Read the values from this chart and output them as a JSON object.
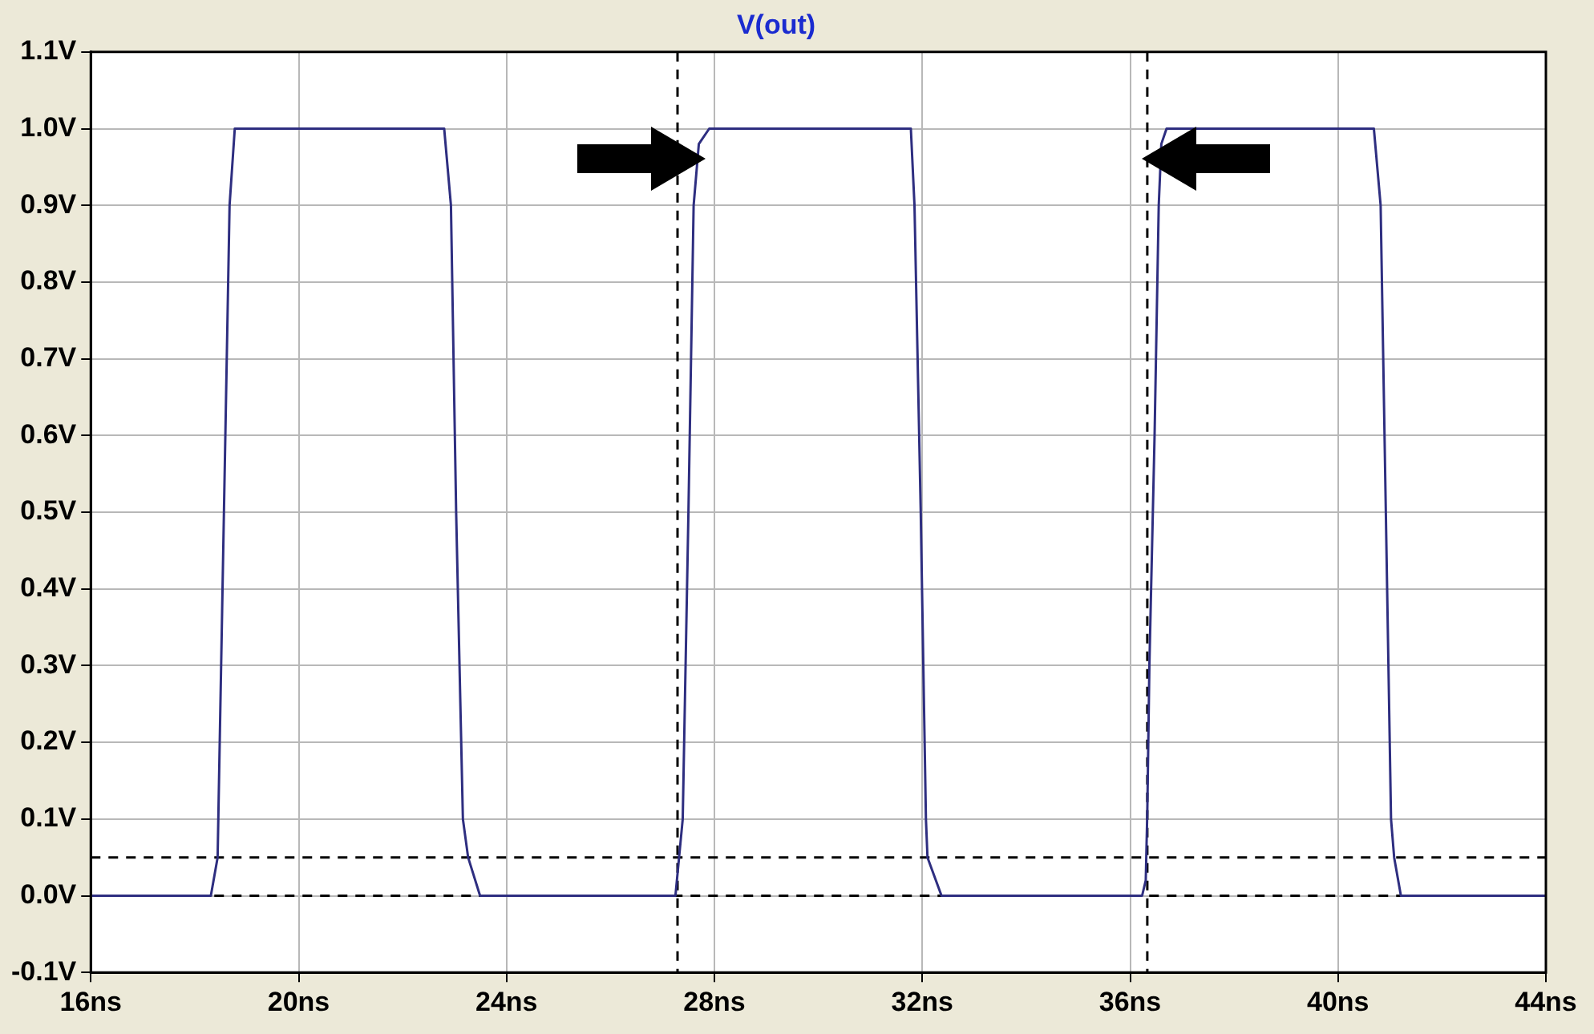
{
  "chart_data": {
    "type": "line",
    "title": "V(out)",
    "series": [
      {
        "color": "#2e2e80",
        "x": [
          16,
          18.31,
          18.44,
          18.67,
          18.77,
          18.94,
          22.8,
          22.93,
          23.03,
          23.16,
          23.26,
          23.49,
          27.25,
          27.32,
          27.39,
          27.5,
          27.6,
          27.7,
          27.9,
          31.78,
          31.85,
          31.97,
          32.07,
          32.1,
          32.37,
          36.23,
          36.3,
          36.33,
          36.37,
          36.47,
          36.55,
          36.6,
          36.7,
          40.69,
          40.82,
          40.92,
          41.02,
          41.08,
          41.21,
          44
        ],
        "values": [
          0,
          0,
          0.05,
          0.9,
          1,
          1,
          1,
          0.9,
          0.5,
          0.1,
          0.05,
          0,
          0,
          0.05,
          0.1,
          0.5,
          0.9,
          0.98,
          1,
          1,
          0.9,
          0.5,
          0.1,
          0.05,
          0,
          0,
          0.02,
          0.11,
          0.3,
          0.6,
          0.9,
          0.98,
          1,
          1,
          0.9,
          0.5,
          0.1,
          0.05,
          0,
          0
        ]
      }
    ],
    "xlim": [
      16,
      44
    ],
    "xticks": [
      {
        "value": 16,
        "label": "16ns"
      },
      {
        "value": 20,
        "label": "20ns"
      },
      {
        "value": 24,
        "label": "24ns"
      },
      {
        "value": 28,
        "label": "28ns"
      },
      {
        "value": 32,
        "label": "32ns"
      },
      {
        "value": 36,
        "label": "36ns"
      },
      {
        "value": 40,
        "label": "40ns"
      },
      {
        "value": 44,
        "label": "44ns"
      }
    ],
    "ylim": [
      -0.1,
      1.1
    ],
    "yticks": [
      {
        "value": -0.1,
        "label": "-0.1V"
      },
      {
        "value": 0,
        "label": "0.0V"
      },
      {
        "value": 0.1,
        "label": "0.1V"
      },
      {
        "value": 0.2,
        "label": "0.2V"
      },
      {
        "value": 0.3,
        "label": "0.3V"
      },
      {
        "value": 0.4,
        "label": "0.4V"
      },
      {
        "value": 0.5,
        "label": "0.5V"
      },
      {
        "value": 0.6,
        "label": "0.6V"
      },
      {
        "value": 0.7,
        "label": "0.7V"
      },
      {
        "value": 0.8,
        "label": "0.8V"
      },
      {
        "value": 0.9,
        "label": "0.9V"
      },
      {
        "value": 1.0,
        "label": "1.0V"
      },
      {
        "value": 1.1,
        "label": "1.1V"
      }
    ],
    "ref_lines": [
      {
        "axis": "y",
        "value": 0.05,
        "color": "#000000",
        "line_style": "dashed"
      },
      {
        "axis": "y",
        "value": 0,
        "color": "#000000",
        "line_style": "dashed"
      },
      {
        "axis": "x",
        "value": 27.29,
        "color": "#000000",
        "line_style": "dashed"
      },
      {
        "axis": "x",
        "value": 36.33,
        "color": "#000000",
        "line_style": "dashed"
      }
    ],
    "grid": true,
    "legend": false,
    "marker": "none",
    "line_style": "solid"
  }
}
